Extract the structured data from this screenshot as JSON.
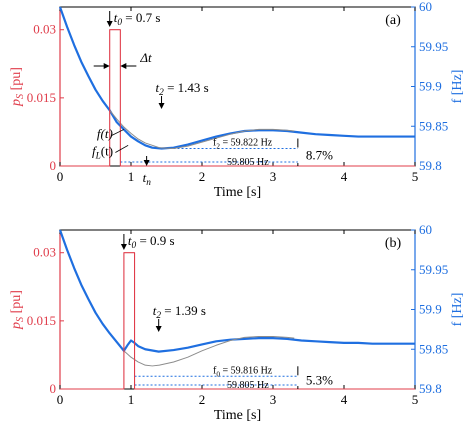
{
  "colors": {
    "frequency": "#1f6fe0",
    "frequency_load": "#8c8c8c",
    "power": "#e03c4a",
    "axis": "#000000",
    "reference": "#1f6fe0"
  },
  "chart_data": [
    {
      "type": "line",
      "panel_label": "(a)",
      "xlabel": "Time  [s]",
      "ylabel_left": "p_S  [pu]",
      "ylabel_right": "f  [Hz]",
      "xlim": [
        0,
        5
      ],
      "ylim_left": [
        0,
        0.035
      ],
      "ylim_right": [
        59.8,
        60
      ],
      "xticks": [
        "0",
        "1",
        "2",
        "3",
        "4",
        "5"
      ],
      "yticks_left": [
        "0",
        "0.015",
        "0.03"
      ],
      "yticks_right": [
        "59.8",
        "59.85",
        "59.9",
        "59.95",
        "60"
      ],
      "series": [
        {
          "name": "f(t)",
          "axis": "right",
          "x": [
            0,
            0.1,
            0.2,
            0.3,
            0.4,
            0.5,
            0.6,
            0.7,
            0.8,
            0.9,
            1.0,
            1.1,
            1.2,
            1.3,
            1.43,
            1.6,
            1.8,
            2.0,
            2.2,
            2.4,
            2.6,
            2.8,
            3.0,
            3.2,
            3.4,
            3.6,
            3.8,
            4.0,
            4.2,
            4.4,
            4.6,
            4.8,
            5.0
          ],
          "y": [
            60.0,
            59.975,
            59.952,
            59.931,
            59.913,
            59.896,
            59.882,
            59.87,
            59.855,
            59.846,
            59.837,
            59.831,
            59.826,
            59.823,
            59.822,
            59.823,
            59.827,
            59.832,
            59.837,
            59.841,
            59.844,
            59.845,
            59.845,
            59.844,
            59.842,
            59.84,
            59.839,
            59.838,
            59.837,
            59.837,
            59.837,
            59.837,
            59.837
          ]
        },
        {
          "name": "f_L(t)",
          "axis": "right",
          "x": [
            0.7,
            0.8,
            0.9,
            1.0,
            1.1,
            1.2,
            1.3,
            1.4,
            1.6,
            1.8,
            2.0,
            2.2,
            2.4,
            2.6,
            2.8,
            3.0,
            3.2,
            3.3
          ],
          "y": [
            59.87,
            59.859,
            59.849,
            59.841,
            59.834,
            59.829,
            59.826,
            59.823,
            59.822,
            59.825,
            59.83,
            59.835,
            59.84,
            59.844,
            59.846,
            59.846,
            59.845,
            59.844
          ]
        },
        {
          "name": "p_S",
          "axis": "left",
          "x": [
            0,
            0.7,
            0.7,
            0.85,
            0.85,
            5
          ],
          "y": [
            0,
            0,
            0.03,
            0.03,
            0,
            0
          ]
        }
      ],
      "references": [
        {
          "label": "f_2 = 59.822 Hz",
          "value": 59.822,
          "x_from": 1.43,
          "x_to": 3.35
        },
        {
          "label": "59.805 Hz",
          "value": 59.805,
          "x_from": 0.85,
          "x_to": 3.35
        }
      ],
      "annotations": {
        "t0": "t_0 = 0.7 s",
        "t0_x": 0.7,
        "t2": "t_2 = 1.43 s",
        "t2_x": 1.43,
        "tn": "t_n",
        "tn_x": 1.22,
        "dt": "Δt",
        "percent": "8.7%",
        "percent_x": 3.35
      }
    },
    {
      "type": "line",
      "panel_label": "(b)",
      "xlabel": "Time  [s]",
      "ylabel_left": "p_S  [pu]",
      "ylabel_right": "f  [Hz]",
      "xlim": [
        0,
        5
      ],
      "ylim_left": [
        0,
        0.035
      ],
      "ylim_right": [
        59.8,
        60
      ],
      "xticks": [
        "0",
        "1",
        "2",
        "3",
        "4",
        "5"
      ],
      "yticks_left": [
        "0",
        "0.015",
        "0.03"
      ],
      "yticks_right": [
        "59.8",
        "59.85",
        "59.9",
        "59.95",
        "60"
      ],
      "series": [
        {
          "name": "f(t)",
          "axis": "right",
          "x": [
            0,
            0.1,
            0.2,
            0.3,
            0.4,
            0.5,
            0.6,
            0.7,
            0.8,
            0.9,
            0.95,
            1.0,
            1.05,
            1.1,
            1.2,
            1.39,
            1.6,
            1.8,
            2.0,
            2.2,
            2.4,
            2.6,
            2.8,
            3.0,
            3.2,
            3.4,
            3.6,
            3.8,
            4.0,
            4.2,
            4.4,
            4.6,
            4.8,
            5.0
          ],
          "y": [
            60.0,
            59.975,
            59.952,
            59.931,
            59.913,
            59.896,
            59.882,
            59.87,
            59.859,
            59.848,
            59.855,
            59.861,
            59.858,
            59.854,
            59.85,
            59.847,
            59.849,
            59.852,
            59.856,
            59.86,
            59.862,
            59.863,
            59.864,
            59.864,
            59.863,
            59.861,
            59.86,
            59.859,
            59.858,
            59.858,
            59.857,
            59.857,
            59.857,
            59.857
          ]
        },
        {
          "name": "f_L(t)",
          "axis": "right",
          "x": [
            0.9,
            1.0,
            1.1,
            1.2,
            1.3,
            1.4,
            1.6,
            1.8,
            2.0,
            2.2,
            2.4,
            2.6,
            2.8,
            3.0,
            3.2,
            3.3
          ],
          "y": [
            59.848,
            59.84,
            59.834,
            59.83,
            59.829,
            59.83,
            59.834,
            59.84,
            59.848,
            59.855,
            59.861,
            59.865,
            59.866,
            59.866,
            59.865,
            59.864
          ]
        },
        {
          "name": "p_S",
          "axis": "left",
          "x": [
            0,
            0.9,
            0.9,
            1.05,
            1.05,
            5
          ],
          "y": [
            0,
            0,
            0.03,
            0.03,
            0,
            0
          ]
        }
      ],
      "references": [
        {
          "label": "f_0 = 59.816 Hz",
          "value": 59.816,
          "x_from": 1.05,
          "x_to": 3.35
        },
        {
          "label": "59.805 Hz",
          "value": 59.805,
          "x_from": 1.05,
          "x_to": 3.35
        }
      ],
      "annotations": {
        "t0": "t_0 = 0.9 s",
        "t0_x": 0.9,
        "t2": "t_2 = 1.39 s",
        "t2_x": 1.39,
        "percent": "5.3%",
        "percent_x": 3.35
      }
    }
  ]
}
